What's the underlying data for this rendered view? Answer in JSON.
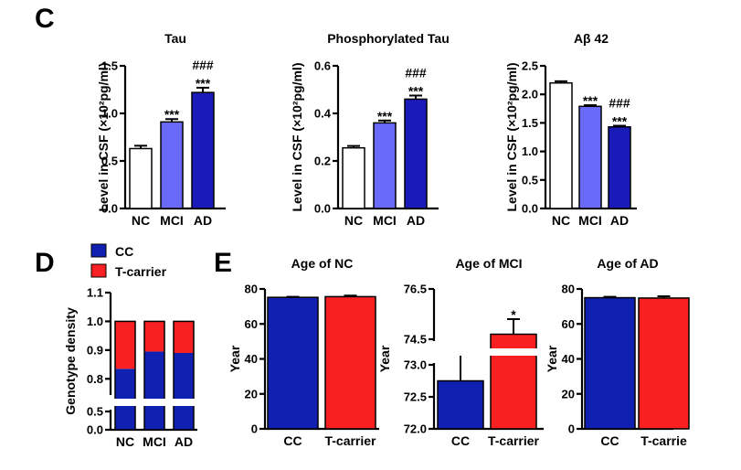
{
  "panels": {
    "C": "C",
    "D": "D",
    "E": "E"
  },
  "colors": {
    "NC": "#ffffff",
    "MCI": "#6a6afa",
    "AD": "#1a1ab8",
    "CC": "#1020b0",
    "T-carrier": "#f82020"
  },
  "legend": {
    "items": [
      {
        "label": "CC",
        "color": "#1020b0"
      },
      {
        "label": "T-carrier",
        "color": "#f82020"
      }
    ]
  },
  "chart_data": [
    {
      "id": "C1",
      "type": "bar",
      "title": "Tau",
      "ylabel": "Level in CSF (×10²pg/ml)",
      "categories": [
        "NC",
        "MCI",
        "AD"
      ],
      "values": [
        0.63,
        0.91,
        1.22
      ],
      "errors": [
        0.03,
        0.03,
        0.05
      ],
      "ylim": [
        0,
        1.5
      ],
      "yticks": [
        0.0,
        0.5,
        1.0,
        1.5
      ],
      "ytick_labels": [
        "0.0",
        "0.5",
        "1.0",
        "1.5"
      ],
      "significance": [
        [],
        [
          "***"
        ],
        [
          "###",
          "***"
        ]
      ]
    },
    {
      "id": "C2",
      "type": "bar",
      "title": "Phosphorylated Tau",
      "ylabel": "Level in CSF (×10²pg/ml)",
      "categories": [
        "NC",
        "MCI",
        "AD"
      ],
      "values": [
        0.255,
        0.36,
        0.46
      ],
      "errors": [
        0.008,
        0.01,
        0.015
      ],
      "ylim": [
        0,
        0.6
      ],
      "yticks": [
        0.0,
        0.2,
        0.4,
        0.6
      ],
      "ytick_labels": [
        "0.0",
        "0.2",
        "0.4",
        "0.6"
      ],
      "significance": [
        [],
        [
          "***"
        ],
        [
          "###",
          "***"
        ]
      ]
    },
    {
      "id": "C3",
      "type": "bar",
      "title": "Aβ 42",
      "ylabel": "Level in CSF (×10²pg/ml)",
      "categories": [
        "NC",
        "MCI",
        "AD"
      ],
      "values": [
        2.2,
        1.79,
        1.43
      ],
      "errors": [
        0.03,
        0.02,
        0.02
      ],
      "ylim": [
        0,
        2.5
      ],
      "yticks": [
        0.0,
        0.5,
        1.0,
        1.5,
        2.0,
        2.5
      ],
      "ytick_labels": [
        "0.0",
        "0.5",
        "1.0",
        "1.5",
        "2.0",
        "2.5"
      ],
      "significance": [
        [],
        [
          "***"
        ],
        [
          "###",
          "***"
        ]
      ]
    },
    {
      "id": "D",
      "type": "bar",
      "stacked": true,
      "title": "",
      "ylabel": "Genotype density",
      "categories": [
        "NC",
        "MCI",
        "AD"
      ],
      "series": [
        {
          "name": "CC",
          "values": [
            0.835,
            0.895,
            0.89
          ]
        },
        {
          "name": "T-carrier",
          "values": [
            0.165,
            0.105,
            0.11
          ]
        }
      ],
      "ylim": [
        0,
        1.1
      ],
      "axis_break": [
        0.5,
        0.75
      ],
      "yticks": [
        0.0,
        0.5,
        0.8,
        0.9,
        1.0,
        1.1
      ],
      "ytick_labels": [
        "0.0",
        "0.5",
        "0.8",
        "0.9",
        "1.0",
        "1.1"
      ]
    },
    {
      "id": "E1",
      "type": "bar",
      "title": "Age of NC",
      "ylabel": "Year",
      "categories": [
        "CC",
        "T-carrier"
      ],
      "values": [
        75.2,
        75.6
      ],
      "errors": [
        0.3,
        0.6
      ],
      "ylim": [
        0,
        80
      ],
      "yticks": [
        0,
        20,
        40,
        60,
        80
      ],
      "ytick_labels": [
        "0",
        "20",
        "40",
        "60",
        "80"
      ],
      "significance": [
        [],
        []
      ]
    },
    {
      "id": "E2",
      "type": "bar",
      "title": "Age of MCI",
      "ylabel": "Year",
      "categories": [
        "CC",
        "T-carrier"
      ],
      "values": [
        72.75,
        74.7
      ],
      "errors": [
        0.3,
        0.6
      ],
      "ylim": [
        72.0,
        76.5
      ],
      "axis_break": [
        73.0,
        74.5
      ],
      "yticks": [
        72.0,
        72.5,
        73.0,
        74.5,
        76.5
      ],
      "ytick_labels": [
        "72.0",
        "72.5",
        "73.0",
        "74.5",
        "76.5"
      ],
      "significance": [
        [],
        [
          "*"
        ]
      ]
    },
    {
      "id": "E3",
      "type": "bar",
      "title": "Age of AD",
      "ylabel": "Year",
      "categories": [
        "CC",
        "T-carrie"
      ],
      "values": [
        75.0,
        74.8
      ],
      "errors": [
        0.5,
        1.0
      ],
      "ylim": [
        0,
        80
      ],
      "yticks": [
        0,
        20,
        40,
        60,
        80
      ],
      "ytick_labels": [
        "0",
        "20",
        "40",
        "60",
        "80"
      ],
      "significance": [
        [],
        []
      ]
    }
  ]
}
